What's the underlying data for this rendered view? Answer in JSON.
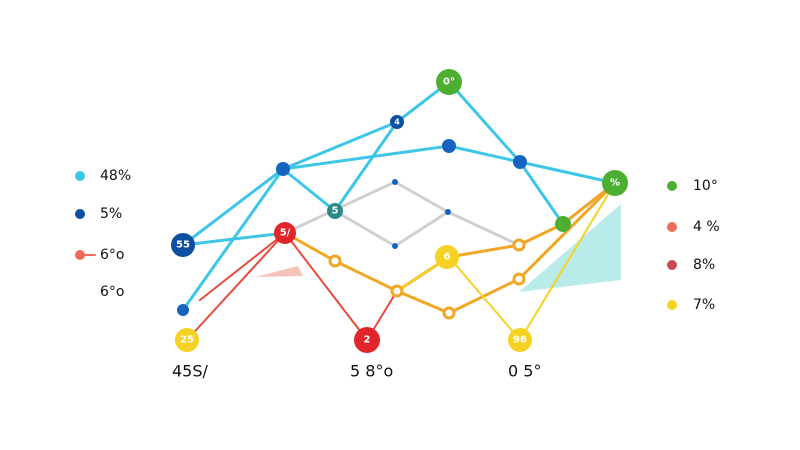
{
  "left_legend": [
    "48%",
    "5%",
    "6°o",
    "6°o"
  ],
  "right_legend": [
    "10°",
    "4 %",
    "8%",
    "7%"
  ],
  "bottom_labels": [
    "45S/",
    "5 8°o",
    "0 5°"
  ],
  "node_labels": [
    "55",
    "0°",
    "4",
    "5",
    "5/",
    "2",
    "25",
    "6",
    "96",
    "%"
  ]
}
